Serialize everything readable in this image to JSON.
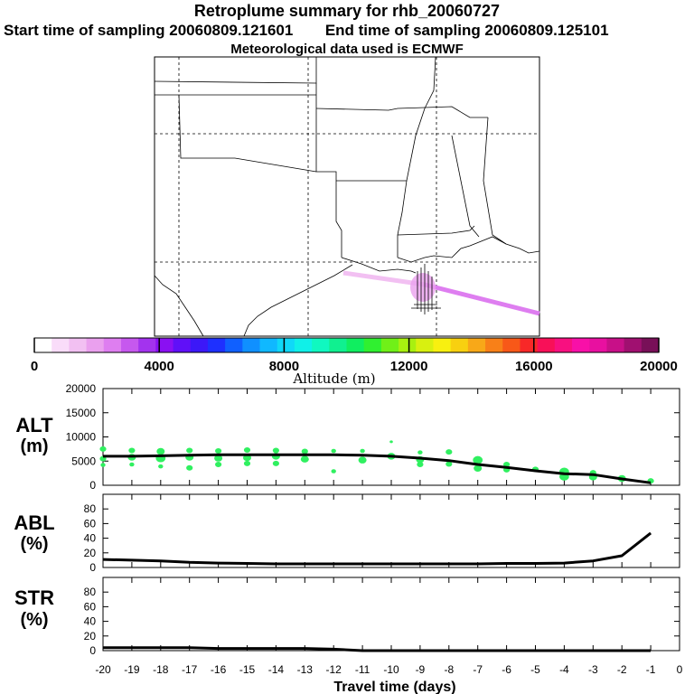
{
  "header": {
    "title": "Retroplume summary for rhb_20060727",
    "start_label": "Start time of sampling 20060809.121601",
    "end_label": "End time of sampling 20060809.125101",
    "met_label": "Meteorological data used is ECMWF"
  },
  "colorbar": {
    "label": "Altitude (m)",
    "ticks": [
      "0",
      "4000",
      "8000",
      "12000",
      "16000",
      "20000"
    ],
    "colors": [
      "#ffffff",
      "#f9dcf9",
      "#f2c0f2",
      "#eaa0ee",
      "#de7ef0",
      "#c658ee",
      "#a333ee",
      "#8a10f2",
      "#6010f8",
      "#3c18f8",
      "#1e30ff",
      "#1060ff",
      "#1090ff",
      "#10b8ff",
      "#10d8f8",
      "#10f0e8",
      "#10f8c0",
      "#10f090",
      "#10ee60",
      "#30f030",
      "#70f018",
      "#a8f010",
      "#d8f010",
      "#f8f010",
      "#f8d010",
      "#f8a818",
      "#f88018",
      "#f85818",
      "#f82828",
      "#f81058",
      "#f81080",
      "#f810a8",
      "#e810a0",
      "#c81088",
      "#a01070",
      "#781058"
    ]
  },
  "chart_data": [
    {
      "type": "scatter",
      "name": "ALT",
      "ylabel": "ALT (m)",
      "ylim": [
        0,
        20000
      ],
      "yticks": [
        0,
        5000,
        10000,
        15000,
        20000
      ],
      "xlim": [
        -20,
        0
      ],
      "line": {
        "x": [
          -20,
          -19,
          -18,
          -17,
          -16,
          -15,
          -14,
          -13,
          -12,
          -11,
          -10,
          -9,
          -8,
          -7,
          -6,
          -5,
          -4,
          -3,
          -2,
          -1
        ],
        "y": [
          6000,
          6000,
          6100,
          6200,
          6300,
          6300,
          6300,
          6300,
          6300,
          6200,
          6000,
          5600,
          5100,
          4300,
          3700,
          3000,
          2400,
          2200,
          1300,
          500
        ]
      },
      "points": {
        "x": [
          -20,
          -20,
          -20,
          -19,
          -19,
          -19,
          -18,
          -18,
          -18,
          -17,
          -17,
          -17,
          -16,
          -16,
          -16,
          -15,
          -15,
          -15,
          -14,
          -14,
          -14,
          -13,
          -13,
          -12,
          -12,
          -11,
          -11,
          -10,
          -10,
          -9,
          -9,
          -9,
          -8,
          -8,
          -7,
          -7,
          -6,
          -6,
          -5,
          -4,
          -4,
          -3,
          -3,
          -2,
          -1
        ],
        "y": [
          7500,
          5500,
          4200,
          7200,
          5800,
          4300,
          7000,
          5600,
          3900,
          7200,
          5800,
          3600,
          7100,
          5600,
          4300,
          7300,
          5700,
          4500,
          7200,
          6000,
          4500,
          7000,
          5400,
          7100,
          2900,
          7100,
          5200,
          9000,
          6000,
          6800,
          5300,
          4300,
          6900,
          4400,
          5200,
          3500,
          4300,
          3200,
          3300,
          2800,
          1800,
          2600,
          1700,
          1400,
          900
        ],
        "s": [
          4,
          4,
          3,
          4,
          5,
          3,
          5,
          6,
          3,
          4,
          5,
          4,
          4,
          5,
          4,
          4,
          5,
          4,
          4,
          5,
          4,
          4,
          5,
          3,
          3,
          3,
          5,
          2,
          5,
          3,
          5,
          4,
          4,
          4,
          6,
          5,
          4,
          4,
          4,
          6,
          6,
          4,
          5,
          5,
          4
        ]
      }
    },
    {
      "type": "line",
      "name": "ABL",
      "ylabel": "ABL (%)",
      "ylim": [
        0,
        100
      ],
      "yticks": [
        0,
        20,
        40,
        60,
        80
      ],
      "xlim": [
        -20,
        0
      ],
      "x": [
        -20,
        -19,
        -18,
        -17,
        -16,
        -15,
        -14,
        -13,
        -12,
        -11,
        -10,
        -9,
        -8,
        -7,
        -6,
        -5,
        -4,
        -3,
        -2,
        -1
      ],
      "y": [
        11,
        10,
        9,
        7,
        6,
        5.5,
        5,
        5,
        5,
        5,
        5,
        5,
        5,
        5,
        5.5,
        5.5,
        6,
        9,
        16,
        47
      ]
    },
    {
      "type": "line",
      "name": "STR",
      "ylabel": "STR (%)",
      "ylim": [
        0,
        100
      ],
      "yticks": [
        0,
        20,
        40,
        60,
        80
      ],
      "xlim": [
        -20,
        0
      ],
      "xlabel": "Travel time (days)",
      "xticks": [
        "-20",
        "-19",
        "-18",
        "-17",
        "-16",
        "-15",
        "-14",
        "-13",
        "-12",
        "-11",
        "-10",
        "-9",
        "-8",
        "-7",
        "-6",
        "-5",
        "-4",
        "-3",
        "-2",
        "-1",
        "0"
      ],
      "x": [
        -20,
        -19,
        -18,
        -17,
        -16,
        -15,
        -14,
        -13,
        -12,
        -11,
        -10,
        -9,
        -8,
        -7,
        -6,
        -5,
        -4,
        -3,
        -2,
        -1
      ],
      "y": [
        4,
        4,
        4,
        4,
        3,
        3,
        3,
        3,
        2,
        0,
        0,
        0,
        0,
        0,
        0,
        0,
        0,
        0,
        0,
        0
      ]
    }
  ],
  "panel_labels": {
    "alt_top": "ALT",
    "alt_bottom": "(m)",
    "abl_top": "ABL",
    "abl_bottom": "(%)",
    "str_top": "STR",
    "str_bottom": "(%)"
  }
}
